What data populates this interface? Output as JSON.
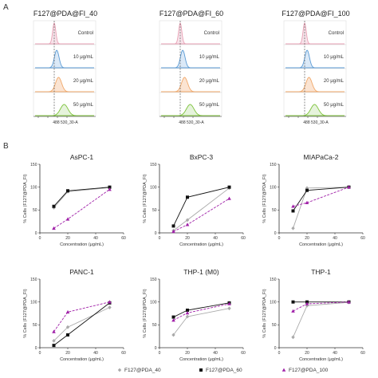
{
  "panel_a": {
    "letter": "A",
    "groups": [
      {
        "title": "F127@PDA@FI_40",
        "axis_label": "488 530_30-A"
      },
      {
        "title": "F127@PDA@FI_60",
        "axis_label": "488 530_30-A"
      },
      {
        "title": "F127@PDA@FI_100",
        "axis_label": "488 530_30-A"
      }
    ],
    "rows": [
      {
        "label": "Control",
        "color": "#e8a0b4",
        "fill": "#f7e3ea"
      },
      {
        "label": "10 μg/mL",
        "color": "#5b9bd5",
        "fill": "#dbe9f7"
      },
      {
        "label": "20 μg/mL",
        "color": "#f0a86a",
        "fill": "#fbe4d2"
      },
      {
        "label": "50 μg/mL",
        "color": "#7cc23a",
        "fill": "#e6f3dc"
      }
    ],
    "peak_shift": [
      0,
      0.04,
      0.07,
      0.16
    ]
  },
  "panel_b": {
    "letter": "B",
    "ylabel": "% Cells (F127@PDA_FI)",
    "xlabel": "Concentration (μg/mL)"
  },
  "legend": [
    {
      "name": "F127@PDA_40",
      "color": "#aaaaaa",
      "marker": "diamond"
    },
    {
      "name": "F127@PDA_60",
      "color": "#111111",
      "marker": "square"
    },
    {
      "name": "F127@PDA_100",
      "color": "#a020a8",
      "marker": "triangle"
    }
  ],
  "chart_data": [
    {
      "type": "line",
      "title": "AsPC-1",
      "x": [
        10,
        20,
        50
      ],
      "xlim": [
        0,
        60
      ],
      "ylim": [
        0,
        150
      ],
      "xticks": [
        0,
        20,
        40,
        60
      ],
      "yticks": [
        0,
        50,
        100,
        150
      ],
      "ylabel": "% Cells (F127@PDA_FI)",
      "xlabel": "Concentration (μg/mL)",
      "series": [
        {
          "name": "F127@PDA_40",
          "values": [
            55,
            90,
            99
          ]
        },
        {
          "name": "F127@PDA_60",
          "values": [
            58,
            92,
            100
          ]
        },
        {
          "name": "F127@PDA_100",
          "values": [
            10,
            30,
            95
          ]
        }
      ]
    },
    {
      "type": "line",
      "title": "BxPC-3",
      "x": [
        10,
        20,
        50
      ],
      "xlim": [
        0,
        60
      ],
      "ylim": [
        0,
        150
      ],
      "xticks": [
        0,
        20,
        40,
        60
      ],
      "yticks": [
        0,
        50,
        100,
        150
      ],
      "ylabel": "% Cells (F127@PDA_FI)",
      "xlabel": "Concentration (μg/mL)",
      "series": [
        {
          "name": "F127@PDA_40",
          "values": [
            5,
            28,
            98
          ]
        },
        {
          "name": "F127@PDA_60",
          "values": [
            15,
            78,
            100
          ]
        },
        {
          "name": "F127@PDA_100",
          "values": [
            3,
            18,
            75
          ]
        }
      ]
    },
    {
      "type": "line",
      "title": "MIAPaCa-2",
      "x": [
        10,
        20,
        50
      ],
      "xlim": [
        0,
        60
      ],
      "ylim": [
        0,
        150
      ],
      "xticks": [
        0,
        20,
        40,
        60
      ],
      "yticks": [
        0,
        50,
        100,
        150
      ],
      "ylabel": "% Cells (F127@PDA_FI)",
      "xlabel": "Concentration (μg/mL)",
      "series": [
        {
          "name": "F127@PDA_40",
          "values": [
            10,
            98,
            100
          ]
        },
        {
          "name": "F127@PDA_60",
          "values": [
            48,
            93,
            100
          ]
        },
        {
          "name": "F127@PDA_100",
          "values": [
            58,
            66,
            100
          ]
        }
      ]
    },
    {
      "type": "line",
      "title": "PANC-1",
      "x": [
        10,
        20,
        50
      ],
      "xlim": [
        0,
        60
      ],
      "ylim": [
        0,
        150
      ],
      "xticks": [
        0,
        20,
        40,
        60
      ],
      "yticks": [
        0,
        50,
        100,
        150
      ],
      "ylabel": "% Cells (F127@PDA_FI)",
      "xlabel": "Concentration (μg/mL)",
      "series": [
        {
          "name": "F127@PDA_40",
          "values": [
            15,
            45,
            88
          ]
        },
        {
          "name": "F127@PDA_60",
          "values": [
            5,
            28,
            98
          ]
        },
        {
          "name": "F127@PDA_100",
          "values": [
            35,
            78,
            100
          ]
        }
      ]
    },
    {
      "type": "line",
      "title": "THP-1 (M0)",
      "x": [
        10,
        20,
        50
      ],
      "xlim": [
        0,
        60
      ],
      "ylim": [
        0,
        150
      ],
      "xticks": [
        0,
        20,
        40,
        60
      ],
      "yticks": [
        0,
        50,
        100,
        150
      ],
      "ylabel": "% Cells (F127@PDA_FI)",
      "xlabel": "Concentration (μg/mL)",
      "series": [
        {
          "name": "F127@PDA_40",
          "values": [
            28,
            68,
            86
          ]
        },
        {
          "name": "F127@PDA_60",
          "values": [
            67,
            82,
            98
          ]
        },
        {
          "name": "F127@PDA_100",
          "values": [
            60,
            76,
            96
          ]
        }
      ]
    },
    {
      "type": "line",
      "title": "THP-1",
      "x": [
        10,
        20,
        50
      ],
      "xlim": [
        0,
        60
      ],
      "ylim": [
        0,
        150
      ],
      "xticks": [
        0,
        20,
        40,
        60
      ],
      "yticks": [
        0,
        50,
        100,
        150
      ],
      "ylabel": "% Cells (F127@PDA_FI)",
      "xlabel": "Concentration (μg/mL)",
      "series": [
        {
          "name": "F127@PDA_40",
          "values": [
            23,
            92,
            99
          ]
        },
        {
          "name": "F127@PDA_60",
          "values": [
            100,
            100,
            100
          ]
        },
        {
          "name": "F127@PDA_100",
          "values": [
            80,
            96,
            100
          ]
        }
      ]
    }
  ]
}
